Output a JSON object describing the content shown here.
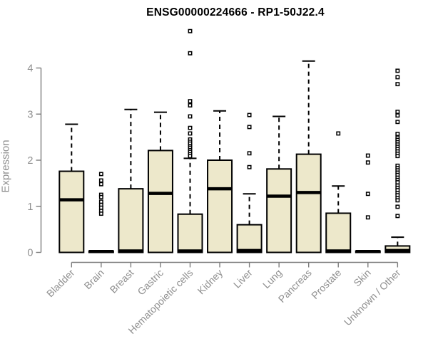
{
  "chart_data": {
    "type": "boxplot",
    "title": "ENSG00000224666 - RP1-50J22.4",
    "ylabel": "Expression",
    "xlabel": "",
    "yticks": [
      0,
      1,
      2,
      3,
      4
    ],
    "ylim": [
      0,
      4.9
    ],
    "grid": false,
    "legend": false,
    "categories": [
      "Bladder",
      "Brain",
      "Breast",
      "Gastric",
      "Hematopoietic cells",
      "Kidney",
      "Liver",
      "Lung",
      "Pancreas",
      "Prostate",
      "Skin",
      "Unknown / Other"
    ],
    "boxes": [
      {
        "category": "Bladder",
        "low": 0,
        "q1": 0,
        "median": 1.14,
        "q3": 1.76,
        "high": 2.78,
        "outliers": []
      },
      {
        "category": "Brain",
        "low": 0,
        "q1": 0,
        "median": 0.02,
        "q3": 0.03,
        "high": 0.03,
        "outliers": [
          1.7,
          1.56,
          1.48,
          1.25,
          1.2,
          1.1,
          1.03,
          0.97,
          0.9,
          0.84
        ]
      },
      {
        "category": "Breast",
        "low": 0,
        "q1": 0,
        "median": 0.03,
        "q3": 1.38,
        "high": 3.1,
        "outliers": []
      },
      {
        "category": "Gastric",
        "low": 0,
        "q1": 0,
        "median": 1.28,
        "q3": 2.21,
        "high": 3.04,
        "outliers": []
      },
      {
        "category": "Hematopoietic cells",
        "low": 0,
        "q1": 0,
        "median": 0.03,
        "q3": 0.83,
        "high": 2.04,
        "outliers": [
          4.8,
          4.32,
          3.28,
          3.19,
          2.95,
          2.7,
          2.58,
          2.45,
          2.4,
          2.36,
          2.31,
          2.27,
          2.22,
          2.18,
          2.13,
          2.09
        ]
      },
      {
        "category": "Kidney",
        "low": 0,
        "q1": 0,
        "median": 1.38,
        "q3": 2.0,
        "high": 3.07,
        "outliers": []
      },
      {
        "category": "Liver",
        "low": 0,
        "q1": 0,
        "median": 0.04,
        "q3": 0.6,
        "high": 1.27,
        "outliers": [
          2.98,
          2.72,
          2.15,
          1.85
        ]
      },
      {
        "category": "Lung",
        "low": 0,
        "q1": 0,
        "median": 1.22,
        "q3": 1.81,
        "high": 2.95,
        "outliers": []
      },
      {
        "category": "Pancreas",
        "low": 0,
        "q1": 0,
        "median": 1.3,
        "q3": 2.13,
        "high": 4.15,
        "outliers": []
      },
      {
        "category": "Prostate",
        "low": 0,
        "q1": 0,
        "median": 0.03,
        "q3": 0.85,
        "high": 1.44,
        "outliers": [
          2.58
        ]
      },
      {
        "category": "Skin",
        "low": 0,
        "q1": 0,
        "median": 0.02,
        "q3": 0.03,
        "high": 0.03,
        "outliers": [
          2.1,
          1.95,
          1.27,
          0.76
        ]
      },
      {
        "category": "Unknown / Other",
        "low": 0,
        "q1": 0,
        "median": 0.04,
        "q3": 0.14,
        "high": 0.33,
        "outliers": [
          3.94,
          3.8,
          3.65,
          3.05,
          2.97,
          2.83,
          2.57,
          2.49,
          2.44,
          2.39,
          2.34,
          2.29,
          2.24,
          2.19,
          2.14,
          2.09,
          1.88,
          1.83,
          1.78,
          1.73,
          1.68,
          1.62,
          1.57,
          1.52,
          1.45,
          1.4,
          1.35,
          1.29,
          1.24,
          1.18,
          1.13,
          0.99,
          0.79
        ]
      }
    ],
    "colors": {
      "box_fill": "#ede8cb",
      "box_stroke": "#000000",
      "median": "#000000",
      "whisker": "#000000",
      "outlier_stroke": "#000000",
      "outlier_fill": "#ffffff",
      "axis": "#7d7d7d",
      "tick_label": "#8f8f8f",
      "title": "#000000"
    }
  }
}
